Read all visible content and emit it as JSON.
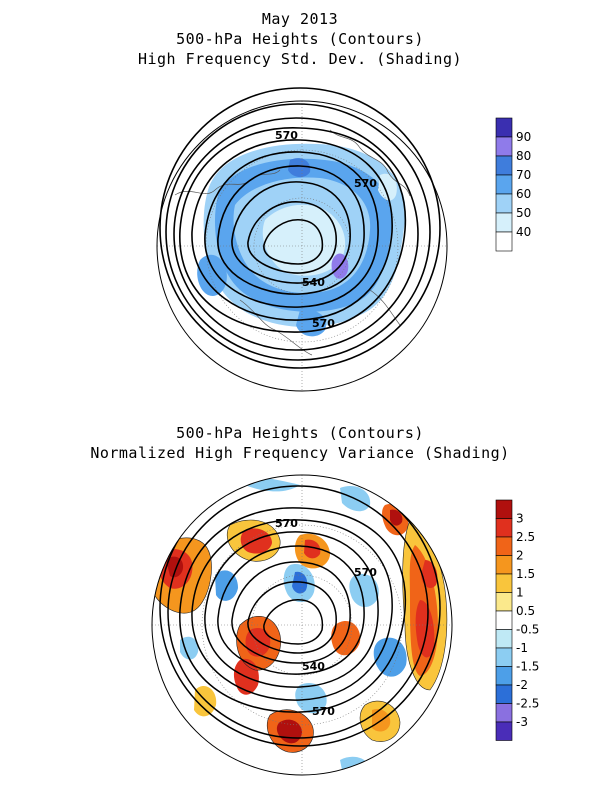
{
  "top_panel": {
    "title_lines": [
      "May 2013",
      "500-hPa Heights (Contours)",
      "High Frequency Std. Dev. (Shading)"
    ],
    "contour_labels": [
      "570",
      "570",
      "540",
      "570"
    ],
    "colorbar": {
      "ticks": [
        "90",
        "80",
        "70",
        "60",
        "50",
        "40"
      ],
      "colors": [
        "#3a2fb0",
        "#8f7bea",
        "#3f7ddc",
        "#5aa5ee",
        "#9fd2f7",
        "#d6f0fb",
        "#ffffff"
      ]
    }
  },
  "bottom_panel": {
    "title_lines": [
      "500-hPa Heights (Contours)",
      "Normalized High Frequency Variance (Shading)"
    ],
    "contour_labels": [
      "570",
      "570",
      "540",
      "570"
    ],
    "colorbar": {
      "ticks": [
        "3",
        "2.5",
        "2",
        "1.5",
        "1",
        "0.5",
        "-0.5",
        "-1",
        "-1.5",
        "-2",
        "-2.5",
        "-3"
      ],
      "colors": [
        "#b0100e",
        "#e0301e",
        "#f06418",
        "#f5961e",
        "#f9c53c",
        "#fbe98c",
        "#ffffff",
        "#bfe9f5",
        "#8ccdf2",
        "#4d9fe8",
        "#2c6fd8",
        "#8a70e0",
        "#4a2db8"
      ]
    }
  }
}
